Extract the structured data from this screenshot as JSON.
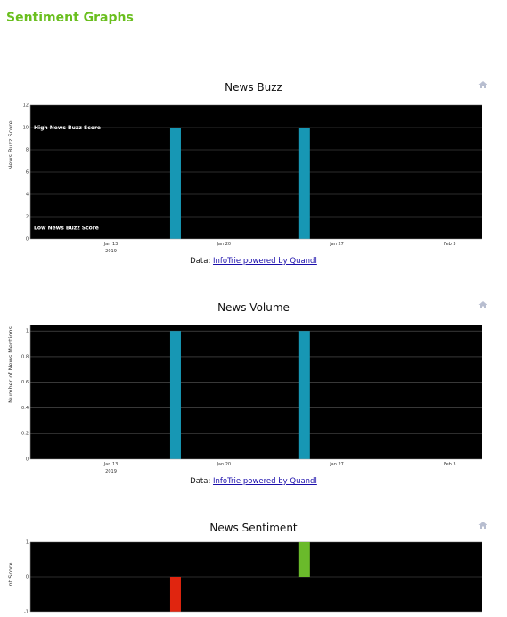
{
  "page": {
    "title": "Sentiment Graphs"
  },
  "charts": [
    {
      "id": "buzz",
      "title": "News Buzz",
      "source_prefix": "Data: ",
      "source_link": "InfoTrie powered by Quandl",
      "icon": "home-icon"
    },
    {
      "id": "volume",
      "title": "News Volume",
      "source_prefix": "Data: ",
      "source_link": "InfoTrie powered by Quandl",
      "icon": "home-icon"
    },
    {
      "id": "sentiment",
      "title": "News Sentiment",
      "icon": "home-icon"
    }
  ],
  "chart_data": [
    {
      "type": "bar",
      "title": "News Buzz",
      "ylabel": "News Buzz Score",
      "xlabel": "",
      "x_range": [
        "2019-01-08",
        "2019-02-05"
      ],
      "x_ticks": [
        {
          "date": "2019-01-13",
          "label": "Jan 13",
          "sub": "2019"
        },
        {
          "date": "2019-01-20",
          "label": "Jan 20"
        },
        {
          "date": "2019-01-27",
          "label": "Jan 27"
        },
        {
          "date": "2019-02-03",
          "label": "Feb 3"
        }
      ],
      "ylim": [
        0,
        12
      ],
      "y_ticks": [
        0,
        2,
        4,
        6,
        8,
        10,
        12
      ],
      "grid": true,
      "annotations": [
        {
          "text": "High News Buzz Score",
          "y": 10
        },
        {
          "text": "Low News Buzz Score",
          "y": 1
        }
      ],
      "bars": [
        {
          "date": "2019-01-17",
          "value": 10
        },
        {
          "date": "2019-01-25",
          "value": 10
        }
      ],
      "bar_color": "#1797b4"
    },
    {
      "type": "bar",
      "title": "News Volume",
      "ylabel": "Number of News Mentions",
      "xlabel": "",
      "x_range": [
        "2019-01-08",
        "2019-02-05"
      ],
      "x_ticks": [
        {
          "date": "2019-01-13",
          "label": "Jan 13",
          "sub": "2019"
        },
        {
          "date": "2019-01-20",
          "label": "Jan 20"
        },
        {
          "date": "2019-01-27",
          "label": "Jan 27"
        },
        {
          "date": "2019-02-03",
          "label": "Feb 3"
        }
      ],
      "ylim": [
        0,
        1.05
      ],
      "y_ticks": [
        "0",
        "0.2",
        "0.4",
        "0.6",
        "0.8",
        "1"
      ],
      "grid": true,
      "bars": [
        {
          "date": "2019-01-17",
          "value": 1
        },
        {
          "date": "2019-01-25",
          "value": 1
        }
      ],
      "bar_color": "#1797b4"
    },
    {
      "type": "bar",
      "title": "News Sentiment",
      "ylabel": "nt Score",
      "xlabel": "",
      "x_range": [
        "2019-01-08",
        "2019-02-05"
      ],
      "ylim": [
        -1,
        1
      ],
      "y_ticks": [
        "-1",
        "0",
        "1"
      ],
      "grid": true,
      "bars": [
        {
          "date": "2019-01-17",
          "value": -1,
          "color": "#e0250f"
        },
        {
          "date": "2019-01-25",
          "value": 1,
          "color": "#6aba2b"
        }
      ]
    }
  ]
}
